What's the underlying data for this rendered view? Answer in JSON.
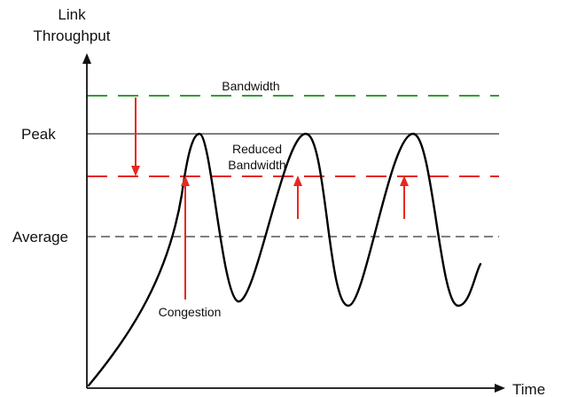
{
  "diagram": {
    "y_axis_label_line1": "Link",
    "y_axis_label_line2": "Throughput",
    "x_axis_label": "Time",
    "levels": {
      "peak": "Peak",
      "average": "Average"
    },
    "annotations": {
      "bandwidth": "Bandwidth",
      "reduced_bandwidth_line1": "Reduced",
      "reduced_bandwidth_line2": "Bandwidth",
      "congestion": "Congestion"
    },
    "colors": {
      "axis": "#111111",
      "bandwidth_line": "#2ea12e",
      "reduced_bandwidth_line": "#e8281f",
      "peak_line": "#333333",
      "average_line": "#555555",
      "throughput_curve": "#000000",
      "arrows": "#e8281f"
    },
    "icons": {
      "y_axis_arrow": "arrow-up-icon",
      "x_axis_arrow": "arrow-right-icon",
      "bandwidth_drop_arrow": "arrow-down-icon",
      "congestion_arrows": "arrow-up-icon"
    }
  }
}
